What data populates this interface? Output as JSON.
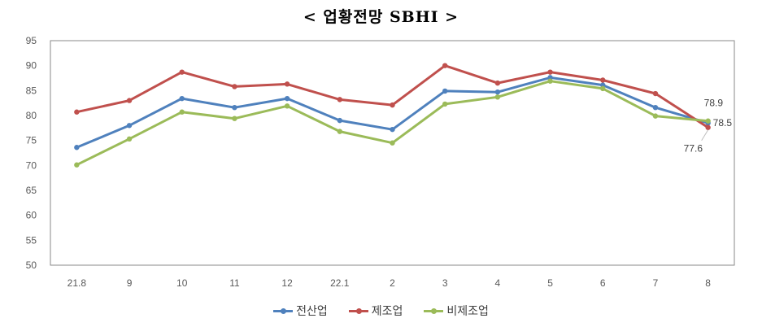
{
  "chart_data": {
    "type": "line",
    "title": "< 업황전망 SBHI >",
    "categories": [
      "21.8",
      "9",
      "10",
      "11",
      "12",
      "22.1",
      "2",
      "3",
      "4",
      "5",
      "6",
      "7",
      "8"
    ],
    "ylim": [
      50,
      95
    ],
    "yticks": [
      50,
      55,
      60,
      65,
      70,
      75,
      80,
      85,
      90,
      95
    ],
    "grid": false,
    "legend": "bottom",
    "series": [
      {
        "name": "전산업",
        "color": "#4F81BD",
        "values": [
          73.6,
          78.0,
          83.4,
          81.6,
          83.4,
          79.0,
          77.2,
          84.9,
          84.7,
          87.6,
          86.1,
          81.6,
          78.5
        ]
      },
      {
        "name": "제조업",
        "color": "#C0504D",
        "values": [
          80.7,
          83.0,
          88.7,
          85.8,
          86.3,
          83.2,
          82.1,
          90.0,
          86.5,
          88.7,
          87.1,
          84.4,
          77.6
        ]
      },
      {
        "name": "비제조업",
        "color": "#9BBB59",
        "values": [
          70.1,
          75.3,
          80.7,
          79.4,
          81.9,
          76.8,
          74.5,
          82.3,
          83.7,
          86.9,
          85.4,
          79.9,
          78.9
        ]
      }
    ],
    "annotations": [
      {
        "series": "비제조업",
        "category": "8",
        "text": "78.9"
      },
      {
        "series": "전산업",
        "category": "8",
        "text": "78.5"
      },
      {
        "series": "제조업",
        "category": "8",
        "text": "77.6"
      }
    ]
  }
}
